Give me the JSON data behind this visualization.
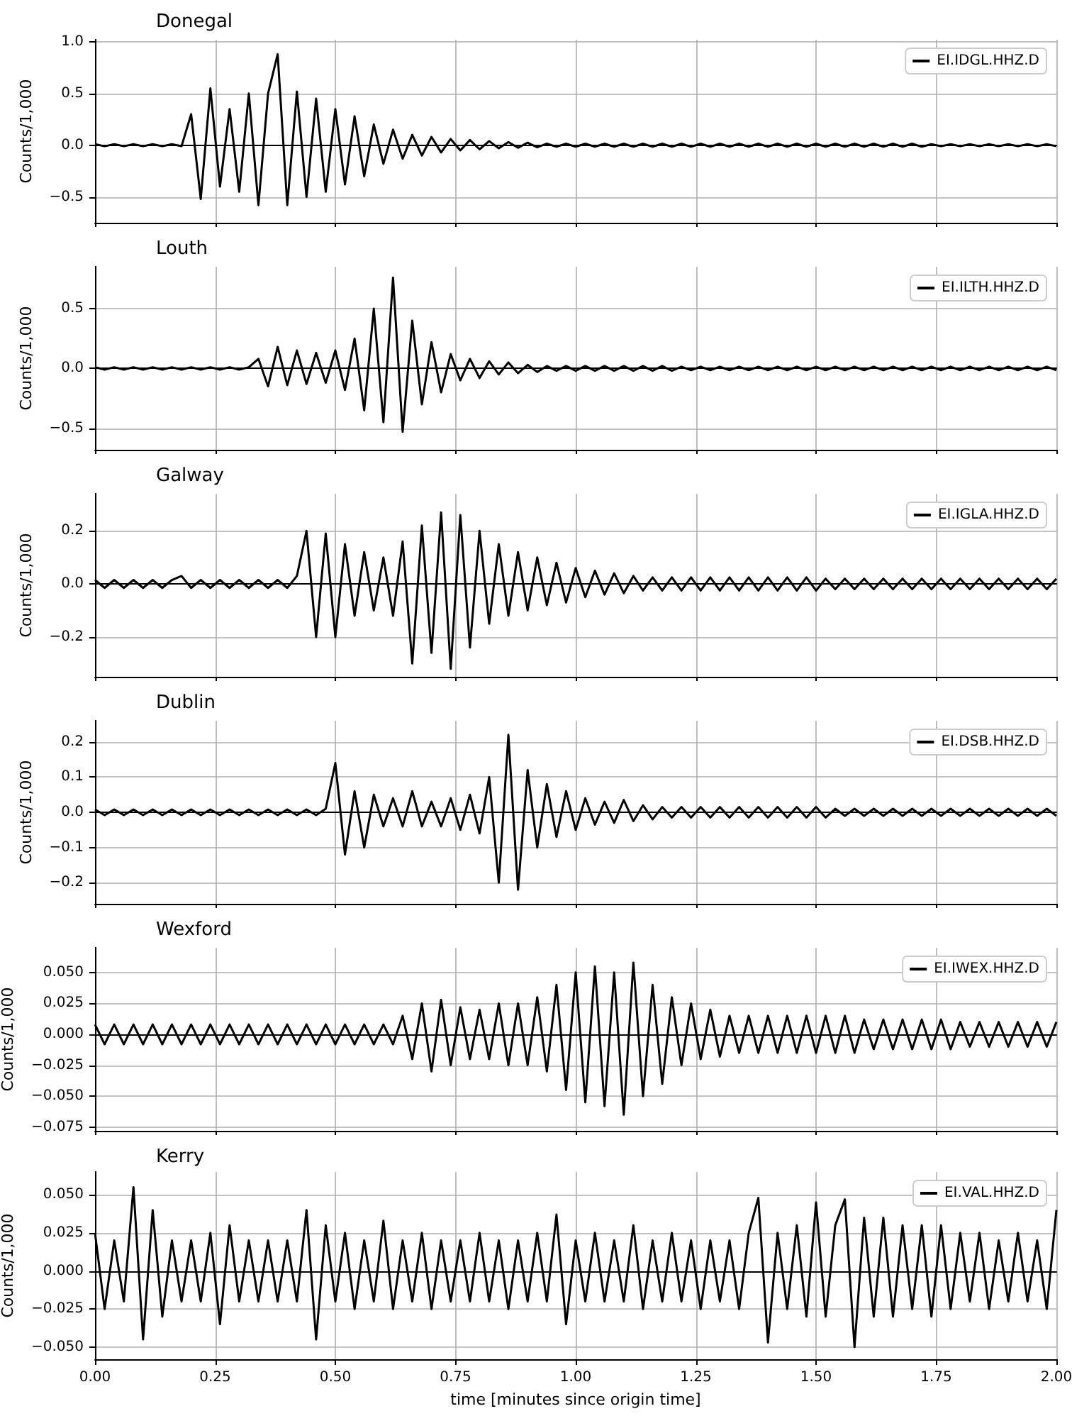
{
  "chart_data": [
    {
      "type": "line",
      "title": "Donegal",
      "ylabel": "Counts/1,000",
      "legend": "top right",
      "grid": true,
      "tick_labels": "y",
      "xlim": [
        0,
        2
      ],
      "xticks": [
        0,
        0.25,
        0.5,
        0.75,
        1,
        1.25,
        1.5,
        1.75,
        2
      ],
      "ylim": [
        -0.75,
        1.02
      ],
      "yticks": [
        {
          "value": -0.5,
          "label": "−0.5"
        },
        {
          "value": 0,
          "label": "0.0"
        },
        {
          "value": 0.5,
          "label": "0.5"
        },
        {
          "value": 1,
          "label": "1.0"
        }
      ],
      "x": [
        0,
        0.02,
        0.04,
        0.06,
        0.08,
        0.1,
        0.12,
        0.14,
        0.16,
        0.18,
        0.2,
        0.22,
        0.24,
        0.26,
        0.28,
        0.3,
        0.32,
        0.34,
        0.36,
        0.38,
        0.4,
        0.42,
        0.44,
        0.46,
        0.48,
        0.5,
        0.52,
        0.54,
        0.56,
        0.58,
        0.6,
        0.62,
        0.64,
        0.66,
        0.68,
        0.7,
        0.72,
        0.74,
        0.76,
        0.78,
        0.8,
        0.82,
        0.84,
        0.86,
        0.88,
        0.9,
        0.92,
        0.94,
        0.96,
        0.98,
        1,
        1.02,
        1.04,
        1.06,
        1.08,
        1.1,
        1.12,
        1.14,
        1.16,
        1.18,
        1.2,
        1.22,
        1.24,
        1.26,
        1.28,
        1.3,
        1.32,
        1.34,
        1.36,
        1.38,
        1.4,
        1.42,
        1.44,
        1.46,
        1.48,
        1.5,
        1.52,
        1.54,
        1.56,
        1.58,
        1.6,
        1.62,
        1.64,
        1.66,
        1.68,
        1.7,
        1.72,
        1.74,
        1.76,
        1.78,
        1.8,
        1.82,
        1.84,
        1.86,
        1.88,
        1.9,
        1.92,
        1.94,
        1.96,
        1.98,
        2
      ],
      "series": [
        {
          "name": "EI.IDGL.HHZ.D",
          "color": "#000000",
          "values": [
            0.01,
            -0.01,
            0.01,
            -0.01,
            0.01,
            -0.01,
            0.01,
            -0.01,
            0.01,
            -0.01,
            0.3,
            -0.52,
            0.55,
            -0.4,
            0.35,
            -0.45,
            0.5,
            -0.58,
            0.5,
            0.88,
            -0.58,
            0.52,
            -0.5,
            0.45,
            -0.45,
            0.35,
            -0.38,
            0.28,
            -0.3,
            0.2,
            -0.18,
            0.15,
            -0.13,
            0.1,
            -0.1,
            0.08,
            -0.07,
            0.06,
            -0.05,
            0.05,
            -0.04,
            0.04,
            -0.03,
            0.03,
            -0.025,
            0.025,
            -0.02,
            0.015,
            -0.015,
            0.015,
            -0.015,
            0.015,
            -0.015,
            0.015,
            -0.015,
            0.015,
            -0.015,
            0.015,
            -0.015,
            0.015,
            -0.015,
            0.015,
            -0.015,
            0.015,
            -0.015,
            0.015,
            -0.015,
            0.015,
            -0.015,
            0.015,
            -0.015,
            0.015,
            -0.015,
            0.015,
            -0.015,
            0.015,
            -0.015,
            0.015,
            -0.015,
            0.015,
            -0.015,
            0.015,
            -0.015,
            0.015,
            -0.015,
            0.015,
            -0.015,
            0.01,
            -0.01,
            0.01,
            -0.01,
            0.01,
            -0.01,
            0.01,
            -0.01,
            0.01,
            -0.01,
            0.01,
            -0.01,
            0.01,
            -0.01
          ]
        }
      ]
    },
    {
      "type": "line",
      "title": "Louth",
      "ylabel": "Counts/1,000",
      "legend": "top right",
      "grid": true,
      "tick_labels": "y",
      "xlim": [
        0,
        2
      ],
      "xticks": [
        0,
        0.25,
        0.5,
        0.75,
        1,
        1.25,
        1.5,
        1.75,
        2
      ],
      "ylim": [
        -0.68,
        0.85
      ],
      "yticks": [
        {
          "value": -0.5,
          "label": "−0.5"
        },
        {
          "value": 0,
          "label": "0.0"
        },
        {
          "value": 0.5,
          "label": "0.5"
        }
      ],
      "x": [
        0,
        0.02,
        0.04,
        0.06,
        0.08,
        0.1,
        0.12,
        0.14,
        0.16,
        0.18,
        0.2,
        0.22,
        0.24,
        0.26,
        0.28,
        0.3,
        0.32,
        0.34,
        0.36,
        0.38,
        0.4,
        0.42,
        0.44,
        0.46,
        0.48,
        0.5,
        0.52,
        0.54,
        0.56,
        0.58,
        0.6,
        0.62,
        0.64,
        0.66,
        0.68,
        0.7,
        0.72,
        0.74,
        0.76,
        0.78,
        0.8,
        0.82,
        0.84,
        0.86,
        0.88,
        0.9,
        0.92,
        0.94,
        0.96,
        0.98,
        1,
        1.02,
        1.04,
        1.06,
        1.08,
        1.1,
        1.12,
        1.14,
        1.16,
        1.18,
        1.2,
        1.22,
        1.24,
        1.26,
        1.28,
        1.3,
        1.32,
        1.34,
        1.36,
        1.38,
        1.4,
        1.42,
        1.44,
        1.46,
        1.48,
        1.5,
        1.52,
        1.54,
        1.56,
        1.58,
        1.6,
        1.62,
        1.64,
        1.66,
        1.68,
        1.7,
        1.72,
        1.74,
        1.76,
        1.78,
        1.8,
        1.82,
        1.84,
        1.86,
        1.88,
        1.9,
        1.92,
        1.94,
        1.96,
        1.98,
        2
      ],
      "series": [
        {
          "name": "EI.ILTH.HHZ.D",
          "color": "#000000",
          "values": [
            0.01,
            -0.01,
            0.01,
            -0.01,
            0.01,
            -0.01,
            0.01,
            -0.01,
            0.01,
            -0.01,
            0.01,
            -0.01,
            0.01,
            -0.01,
            0.01,
            -0.01,
            0.01,
            0.08,
            -0.15,
            0.18,
            -0.14,
            0.15,
            -0.13,
            0.13,
            -0.12,
            0.15,
            -0.18,
            0.25,
            -0.35,
            0.5,
            -0.45,
            0.76,
            -0.53,
            0.4,
            -0.3,
            0.22,
            -0.2,
            0.12,
            -0.1,
            0.08,
            -0.08,
            0.06,
            -0.05,
            0.05,
            -0.04,
            0.03,
            -0.03,
            0.02,
            -0.02,
            0.02,
            -0.02,
            0.02,
            -0.02,
            0.02,
            -0.02,
            0.02,
            -0.02,
            0.02,
            -0.02,
            0.02,
            -0.02,
            0.015,
            -0.015,
            0.015,
            -0.015,
            0.015,
            -0.015,
            0.015,
            -0.015,
            0.015,
            -0.015,
            0.015,
            -0.015,
            0.015,
            -0.015,
            0.015,
            -0.015,
            0.015,
            -0.015,
            0.015,
            -0.015,
            0.015,
            -0.015,
            0.015,
            -0.015,
            0.015,
            -0.015,
            0.015,
            -0.015,
            0.015,
            -0.015,
            0.015,
            -0.015,
            0.015,
            -0.015,
            0.015,
            -0.015,
            0.015,
            -0.015,
            0.015,
            -0.015
          ]
        }
      ]
    },
    {
      "type": "line",
      "title": "Galway",
      "ylabel": "Counts/1,000",
      "legend": "top right",
      "grid": true,
      "tick_labels": "y",
      "xlim": [
        0,
        2
      ],
      "xticks": [
        0,
        0.25,
        0.5,
        0.75,
        1,
        1.25,
        1.5,
        1.75,
        2
      ],
      "ylim": [
        -0.35,
        0.34
      ],
      "yticks": [
        {
          "value": -0.2,
          "label": "−0.2"
        },
        {
          "value": 0,
          "label": "0.0"
        },
        {
          "value": 0.2,
          "label": "0.2"
        }
      ],
      "x": [
        0,
        0.02,
        0.04,
        0.06,
        0.08,
        0.1,
        0.12,
        0.14,
        0.16,
        0.18,
        0.2,
        0.22,
        0.24,
        0.26,
        0.28,
        0.3,
        0.32,
        0.34,
        0.36,
        0.38,
        0.4,
        0.42,
        0.44,
        0.46,
        0.48,
        0.5,
        0.52,
        0.54,
        0.56,
        0.58,
        0.6,
        0.62,
        0.64,
        0.66,
        0.68,
        0.7,
        0.72,
        0.74,
        0.76,
        0.78,
        0.8,
        0.82,
        0.84,
        0.86,
        0.88,
        0.9,
        0.92,
        0.94,
        0.96,
        0.98,
        1,
        1.02,
        1.04,
        1.06,
        1.08,
        1.1,
        1.12,
        1.14,
        1.16,
        1.18,
        1.2,
        1.22,
        1.24,
        1.26,
        1.28,
        1.3,
        1.32,
        1.34,
        1.36,
        1.38,
        1.4,
        1.42,
        1.44,
        1.46,
        1.48,
        1.5,
        1.52,
        1.54,
        1.56,
        1.58,
        1.6,
        1.62,
        1.64,
        1.66,
        1.68,
        1.7,
        1.72,
        1.74,
        1.76,
        1.78,
        1.8,
        1.82,
        1.84,
        1.86,
        1.88,
        1.9,
        1.92,
        1.94,
        1.96,
        1.98,
        2
      ],
      "series": [
        {
          "name": "EI.IGLA.HHZ.D",
          "color": "#000000",
          "values": [
            0.015,
            -0.015,
            0.015,
            -0.015,
            0.015,
            -0.015,
            0.015,
            -0.015,
            0.015,
            0.03,
            -0.015,
            0.015,
            -0.015,
            0.015,
            -0.015,
            0.015,
            -0.015,
            0.015,
            -0.015,
            0.015,
            -0.015,
            0.03,
            0.2,
            -0.2,
            0.19,
            -0.2,
            0.15,
            -0.12,
            0.12,
            -0.1,
            0.1,
            -0.12,
            0.16,
            -0.3,
            0.22,
            -0.26,
            0.27,
            -0.32,
            0.26,
            -0.24,
            0.2,
            -0.15,
            0.15,
            -0.12,
            0.12,
            -0.1,
            0.1,
            -0.08,
            0.08,
            -0.07,
            0.06,
            -0.05,
            0.05,
            -0.04,
            0.04,
            -0.035,
            0.03,
            -0.025,
            0.025,
            -0.025,
            0.025,
            -0.025,
            0.025,
            -0.025,
            0.025,
            -0.025,
            0.025,
            -0.025,
            0.025,
            -0.025,
            0.025,
            -0.025,
            0.025,
            -0.025,
            0.025,
            -0.025,
            0.02,
            -0.02,
            0.02,
            -0.02,
            0.02,
            -0.02,
            0.02,
            -0.02,
            0.02,
            -0.02,
            0.02,
            -0.02,
            0.02,
            -0.02,
            0.02,
            -0.02,
            0.02,
            -0.02,
            0.02,
            -0.02,
            0.02,
            -0.02,
            0.02,
            -0.02,
            0.02
          ]
        }
      ]
    },
    {
      "type": "line",
      "title": "Dublin",
      "ylabel": "Counts/1,000",
      "legend": "top right",
      "grid": true,
      "tick_labels": "y",
      "xlim": [
        0,
        2
      ],
      "xticks": [
        0,
        0.25,
        0.5,
        0.75,
        1,
        1.25,
        1.5,
        1.75,
        2
      ],
      "ylim": [
        -0.26,
        0.26
      ],
      "yticks": [
        {
          "value": -0.2,
          "label": "−0.2"
        },
        {
          "value": -0.1,
          "label": "−0.1"
        },
        {
          "value": 0,
          "label": "0.0"
        },
        {
          "value": 0.1,
          "label": "0.1"
        },
        {
          "value": 0.2,
          "label": "0.2"
        }
      ],
      "x": [
        0,
        0.02,
        0.04,
        0.06,
        0.08,
        0.1,
        0.12,
        0.14,
        0.16,
        0.18,
        0.2,
        0.22,
        0.24,
        0.26,
        0.28,
        0.3,
        0.32,
        0.34,
        0.36,
        0.38,
        0.4,
        0.42,
        0.44,
        0.46,
        0.48,
        0.5,
        0.52,
        0.54,
        0.56,
        0.58,
        0.6,
        0.62,
        0.64,
        0.66,
        0.68,
        0.7,
        0.72,
        0.74,
        0.76,
        0.78,
        0.8,
        0.82,
        0.84,
        0.86,
        0.88,
        0.9,
        0.92,
        0.94,
        0.96,
        0.98,
        1,
        1.02,
        1.04,
        1.06,
        1.08,
        1.1,
        1.12,
        1.14,
        1.16,
        1.18,
        1.2,
        1.22,
        1.24,
        1.26,
        1.28,
        1.3,
        1.32,
        1.34,
        1.36,
        1.38,
        1.4,
        1.42,
        1.44,
        1.46,
        1.48,
        1.5,
        1.52,
        1.54,
        1.56,
        1.58,
        1.6,
        1.62,
        1.64,
        1.66,
        1.68,
        1.7,
        1.72,
        1.74,
        1.76,
        1.78,
        1.8,
        1.82,
        1.84,
        1.86,
        1.88,
        1.9,
        1.92,
        1.94,
        1.96,
        1.98,
        2
      ],
      "series": [
        {
          "name": "EI.DSB.HHZ.D",
          "color": "#000000",
          "values": [
            0.008,
            -0.008,
            0.008,
            -0.008,
            0.008,
            -0.008,
            0.008,
            -0.008,
            0.008,
            -0.008,
            0.008,
            -0.008,
            0.008,
            -0.008,
            0.008,
            -0.008,
            0.008,
            -0.008,
            0.008,
            -0.008,
            0.008,
            -0.008,
            0.008,
            -0.008,
            0.01,
            0.14,
            -0.12,
            0.06,
            -0.1,
            0.05,
            -0.04,
            0.04,
            -0.04,
            0.06,
            -0.04,
            0.03,
            -0.04,
            0.04,
            -0.05,
            0.05,
            -0.06,
            0.1,
            -0.2,
            0.22,
            -0.22,
            0.12,
            -0.1,
            0.08,
            -0.07,
            0.06,
            -0.05,
            0.04,
            -0.035,
            0.03,
            -0.03,
            0.035,
            -0.025,
            0.02,
            -0.02,
            0.015,
            -0.015,
            0.015,
            -0.015,
            0.015,
            -0.015,
            0.015,
            -0.015,
            0.015,
            -0.015,
            0.015,
            -0.015,
            0.015,
            -0.015,
            0.015,
            -0.015,
            0.015,
            -0.015,
            0.01,
            -0.01,
            0.01,
            -0.01,
            0.01,
            -0.01,
            0.01,
            -0.01,
            0.01,
            -0.01,
            0.01,
            -0.01,
            0.01,
            -0.01,
            0.01,
            -0.01,
            0.01,
            -0.01,
            0.01,
            -0.01,
            0.01,
            -0.01,
            0.01,
            -0.01
          ]
        }
      ]
    },
    {
      "type": "line",
      "title": "Wexford",
      "ylabel": "Counts/1,000",
      "legend": "top right",
      "grid": true,
      "tick_labels": "y",
      "xlim": [
        0,
        2
      ],
      "xticks": [
        0,
        0.25,
        0.5,
        0.75,
        1,
        1.25,
        1.5,
        1.75,
        2
      ],
      "ylim": [
        -0.078,
        0.07
      ],
      "yticks": [
        {
          "value": -0.075,
          "label": "−0.075"
        },
        {
          "value": -0.05,
          "label": "−0.050"
        },
        {
          "value": -0.025,
          "label": "−0.025"
        },
        {
          "value": 0,
          "label": "0.000"
        },
        {
          "value": 0.025,
          "label": "0.025"
        },
        {
          "value": 0.05,
          "label": "0.050"
        }
      ],
      "x": [
        0,
        0.02,
        0.04,
        0.06,
        0.08,
        0.1,
        0.12,
        0.14,
        0.16,
        0.18,
        0.2,
        0.22,
        0.24,
        0.26,
        0.28,
        0.3,
        0.32,
        0.34,
        0.36,
        0.38,
        0.4,
        0.42,
        0.44,
        0.46,
        0.48,
        0.5,
        0.52,
        0.54,
        0.56,
        0.58,
        0.6,
        0.62,
        0.64,
        0.66,
        0.68,
        0.7,
        0.72,
        0.74,
        0.76,
        0.78,
        0.8,
        0.82,
        0.84,
        0.86,
        0.88,
        0.9,
        0.92,
        0.94,
        0.96,
        0.98,
        1,
        1.02,
        1.04,
        1.06,
        1.08,
        1.1,
        1.12,
        1.14,
        1.16,
        1.18,
        1.2,
        1.22,
        1.24,
        1.26,
        1.28,
        1.3,
        1.32,
        1.34,
        1.36,
        1.38,
        1.4,
        1.42,
        1.44,
        1.46,
        1.48,
        1.5,
        1.52,
        1.54,
        1.56,
        1.58,
        1.6,
        1.62,
        1.64,
        1.66,
        1.68,
        1.7,
        1.72,
        1.74,
        1.76,
        1.78,
        1.8,
        1.82,
        1.84,
        1.86,
        1.88,
        1.9,
        1.92,
        1.94,
        1.96,
        1.98,
        2
      ],
      "series": [
        {
          "name": "EI.IWEX.HHZ.D",
          "color": "#000000",
          "values": [
            0.008,
            -0.008,
            0.008,
            -0.008,
            0.008,
            -0.008,
            0.008,
            -0.008,
            0.008,
            -0.008,
            0.008,
            -0.008,
            0.008,
            -0.008,
            0.008,
            -0.008,
            0.008,
            -0.008,
            0.008,
            -0.008,
            0.008,
            -0.008,
            0.008,
            -0.008,
            0.008,
            -0.008,
            0.008,
            -0.008,
            0.008,
            -0.008,
            0.008,
            -0.008,
            0.015,
            -0.02,
            0.025,
            -0.03,
            0.028,
            -0.025,
            0.022,
            -0.02,
            0.02,
            -0.02,
            0.025,
            -0.025,
            0.025,
            -0.025,
            0.03,
            -0.03,
            0.04,
            -0.045,
            0.05,
            -0.055,
            0.055,
            -0.058,
            0.05,
            -0.065,
            0.058,
            -0.05,
            0.04,
            -0.04,
            0.03,
            -0.025,
            0.025,
            -0.02,
            0.02,
            -0.018,
            0.015,
            -0.015,
            0.015,
            -0.015,
            0.015,
            -0.015,
            0.015,
            -0.015,
            0.015,
            -0.015,
            0.015,
            -0.015,
            0.015,
            -0.015,
            0.012,
            -0.012,
            0.012,
            -0.012,
            0.012,
            -0.012,
            0.012,
            -0.012,
            0.012,
            -0.012,
            0.01,
            -0.01,
            0.01,
            -0.01,
            0.01,
            -0.01,
            0.01,
            -0.01,
            0.01,
            -0.01,
            0.01
          ]
        }
      ]
    },
    {
      "type": "line",
      "title": "Kerry",
      "ylabel": "Counts/1,000",
      "xlabel": "time [minutes since origin time]",
      "legend": "top right",
      "grid": true,
      "xlim": [
        0,
        2
      ],
      "xticks": [
        {
          "value": 0,
          "label": "0.00"
        },
        {
          "value": 0.25,
          "label": "0.25"
        },
        {
          "value": 0.5,
          "label": "0.50"
        },
        {
          "value": 0.75,
          "label": "0.75"
        },
        {
          "value": 1,
          "label": "1.00"
        },
        {
          "value": 1.25,
          "label": "1.25"
        },
        {
          "value": 1.5,
          "label": "1.50"
        },
        {
          "value": 1.75,
          "label": "1.75"
        },
        {
          "value": 2,
          "label": "2.00"
        }
      ],
      "ylim": [
        -0.058,
        0.065
      ],
      "yticks": [
        {
          "value": -0.05,
          "label": "−0.050"
        },
        {
          "value": -0.025,
          "label": "−0.025"
        },
        {
          "value": 0,
          "label": "0.000"
        },
        {
          "value": 0.025,
          "label": "0.025"
        },
        {
          "value": 0.05,
          "label": "0.050"
        }
      ],
      "x": [
        0,
        0.02,
        0.04,
        0.06,
        0.08,
        0.1,
        0.12,
        0.14,
        0.16,
        0.18,
        0.2,
        0.22,
        0.24,
        0.26,
        0.28,
        0.3,
        0.32,
        0.34,
        0.36,
        0.38,
        0.4,
        0.42,
        0.44,
        0.46,
        0.48,
        0.5,
        0.52,
        0.54,
        0.56,
        0.58,
        0.6,
        0.62,
        0.64,
        0.66,
        0.68,
        0.7,
        0.72,
        0.74,
        0.76,
        0.78,
        0.8,
        0.82,
        0.84,
        0.86,
        0.88,
        0.9,
        0.92,
        0.94,
        0.96,
        0.98,
        1,
        1.02,
        1.04,
        1.06,
        1.08,
        1.1,
        1.12,
        1.14,
        1.16,
        1.18,
        1.2,
        1.22,
        1.24,
        1.26,
        1.28,
        1.3,
        1.32,
        1.34,
        1.36,
        1.38,
        1.4,
        1.42,
        1.44,
        1.46,
        1.48,
        1.5,
        1.52,
        1.54,
        1.56,
        1.58,
        1.6,
        1.62,
        1.64,
        1.66,
        1.68,
        1.7,
        1.72,
        1.74,
        1.76,
        1.78,
        1.8,
        1.82,
        1.84,
        1.86,
        1.88,
        1.9,
        1.92,
        1.94,
        1.96,
        1.98,
        2
      ],
      "series": [
        {
          "name": "EI.VAL.HHZ.D",
          "color": "#000000",
          "values": [
            0.025,
            -0.025,
            0.02,
            -0.02,
            0.055,
            -0.045,
            0.04,
            -0.03,
            0.02,
            -0.02,
            0.02,
            -0.02,
            0.025,
            -0.035,
            0.03,
            -0.02,
            0.02,
            -0.02,
            0.02,
            -0.02,
            0.02,
            -0.02,
            0.04,
            -0.045,
            0.03,
            -0.02,
            0.025,
            -0.025,
            0.02,
            -0.02,
            0.033,
            -0.025,
            0.02,
            -0.02,
            0.025,
            -0.025,
            0.02,
            -0.02,
            0.02,
            -0.02,
            0.025,
            -0.02,
            0.02,
            -0.025,
            0.02,
            -0.02,
            0.025,
            -0.02,
            0.037,
            -0.035,
            0.02,
            -0.02,
            0.025,
            -0.02,
            0.02,
            -0.02,
            0.03,
            -0.025,
            0.02,
            -0.02,
            0.025,
            -0.02,
            0.02,
            -0.025,
            0.02,
            -0.02,
            0.02,
            -0.025,
            0.025,
            0.048,
            -0.047,
            0.025,
            -0.025,
            0.03,
            -0.03,
            0.045,
            -0.03,
            0.03,
            0.047,
            -0.05,
            0.035,
            -0.03,
            0.035,
            -0.03,
            0.03,
            -0.025,
            0.03,
            -0.03,
            0.03,
            -0.025,
            0.025,
            -0.02,
            0.025,
            -0.025,
            0.02,
            -0.02,
            0.025,
            -0.02,
            0.02,
            -0.025,
            0.04
          ]
        }
      ]
    }
  ]
}
